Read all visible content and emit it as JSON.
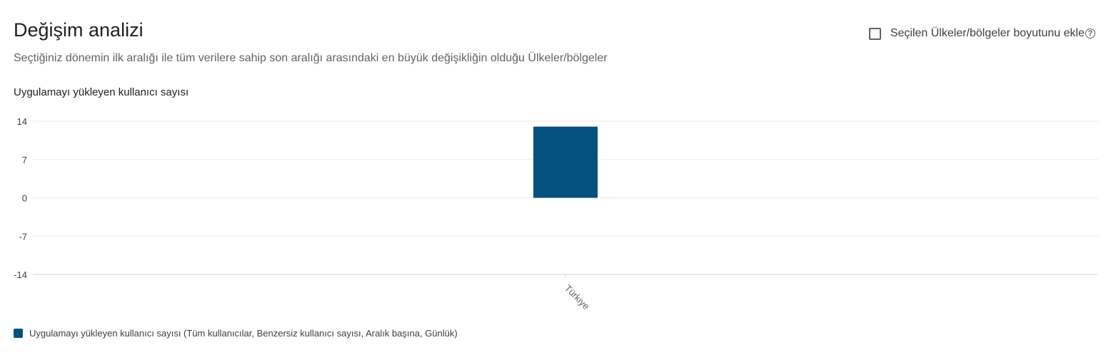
{
  "header": {
    "title": "Değişim analizi",
    "subtitle": "Seçtiğiniz dönemin ilk aralığı ile tüm verilere sahip son aralığı arasındaki en büyük değişikliğin olduğu Ülkeler/bölgeler",
    "metric_label": "Uygulamayı yükleyen kullanıcı sayısı",
    "toggle_label": "Seçilen Ülkeler/bölgeler boyutunu ekle",
    "toggle_checked": false,
    "help_glyph": "?"
  },
  "colors": {
    "bar": "#03517e",
    "grid": "#e8eaed"
  },
  "chart_data": {
    "type": "bar",
    "categories": [
      "Türkiye"
    ],
    "series": [
      {
        "name": "Uygulamayı yükleyen kullanıcı sayısı (Tüm kullanıcılar, Benzersiz kullanıcı sayısı, Aralık başına, Günlük)",
        "values": [
          13
        ]
      }
    ],
    "yticks": [
      "14",
      "7",
      "0",
      "-7",
      "-14"
    ],
    "ylim": [
      -14,
      14
    ],
    "grid": true,
    "legend_position": "bottom-left"
  }
}
